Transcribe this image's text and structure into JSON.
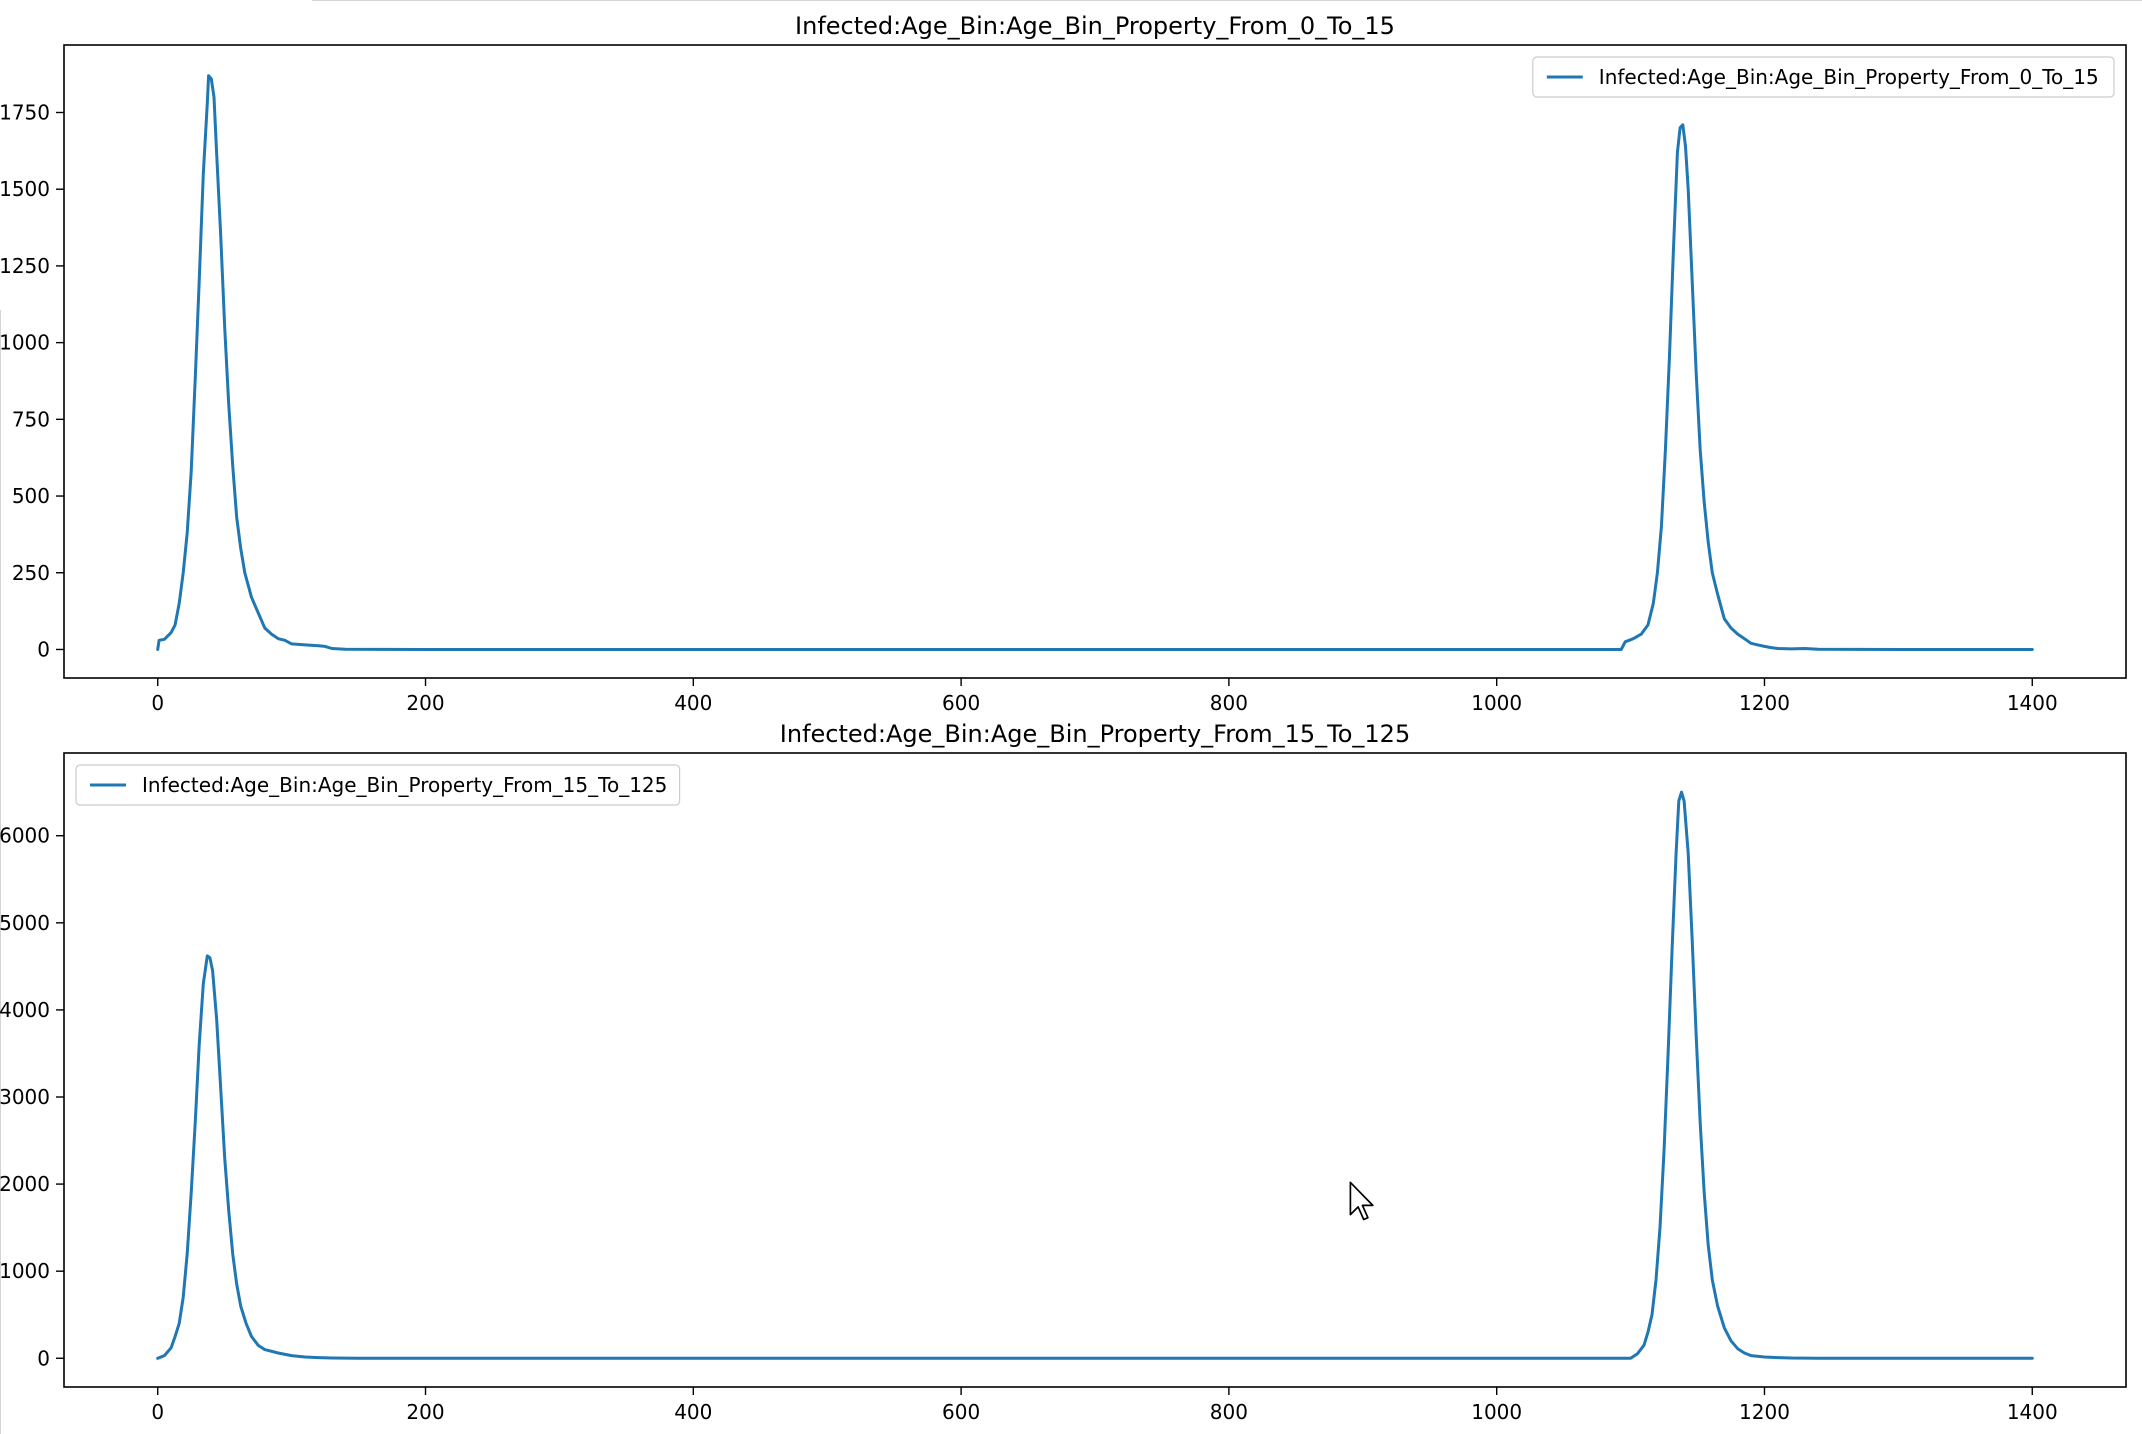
{
  "chart_data": [
    {
      "type": "line",
      "title": "Infected:Age_Bin:Age_Bin_Property_From_0_To_15",
      "xlabel": "",
      "ylabel": "",
      "xlim": [
        -70,
        1470
      ],
      "ylim": [
        -93,
        1970
      ],
      "xticks": [
        0,
        200,
        400,
        600,
        800,
        1000,
        1200,
        1400
      ],
      "xtick_labels": [
        "0",
        "200",
        "400",
        "600",
        "800",
        "1000",
        "1200",
        "1400"
      ],
      "yticks": [
        0,
        250,
        500,
        750,
        1000,
        1250,
        1500,
        1750
      ],
      "ytick_labels": [
        "0",
        "250",
        "500",
        "750",
        "1000",
        "1250",
        "1500",
        "1750"
      ],
      "grid": false,
      "legend": "upper right",
      "series": [
        {
          "name": "Infected:Age_Bin:Age_Bin_Property_From_0_To_15",
          "color": "#1f77b4",
          "points": [
            [
              0,
              0
            ],
            [
              1,
              30
            ],
            [
              5,
              33
            ],
            [
              10,
              55
            ],
            [
              13,
              80
            ],
            [
              16,
              150
            ],
            [
              19,
              250
            ],
            [
              22,
              380
            ],
            [
              25,
              580
            ],
            [
              28,
              880
            ],
            [
              31,
              1200
            ],
            [
              34,
              1550
            ],
            [
              37,
              1780
            ],
            [
              38,
              1870
            ],
            [
              40,
              1860
            ],
            [
              42,
              1800
            ],
            [
              44,
              1620
            ],
            [
              47,
              1350
            ],
            [
              50,
              1050
            ],
            [
              53,
              800
            ],
            [
              56,
              600
            ],
            [
              59,
              430
            ],
            [
              62,
              330
            ],
            [
              65,
              250
            ],
            [
              70,
              170
            ],
            [
              75,
              120
            ],
            [
              80,
              70
            ],
            [
              85,
              50
            ],
            [
              90,
              35
            ],
            [
              95,
              30
            ],
            [
              100,
              18
            ],
            [
              110,
              15
            ],
            [
              120,
              12
            ],
            [
              125,
              10
            ],
            [
              130,
              3
            ],
            [
              140,
              1
            ],
            [
              200,
              0
            ],
            [
              600,
              0
            ],
            [
              1000,
              0
            ],
            [
              1093,
              0
            ],
            [
              1096,
              25
            ],
            [
              1102,
              35
            ],
            [
              1108,
              50
            ],
            [
              1113,
              80
            ],
            [
              1117,
              150
            ],
            [
              1120,
              250
            ],
            [
              1123,
              400
            ],
            [
              1126,
              650
            ],
            [
              1129,
              950
            ],
            [
              1132,
              1300
            ],
            [
              1135,
              1620
            ],
            [
              1137,
              1700
            ],
            [
              1139,
              1710
            ],
            [
              1141,
              1640
            ],
            [
              1143,
              1500
            ],
            [
              1146,
              1200
            ],
            [
              1149,
              900
            ],
            [
              1152,
              650
            ],
            [
              1155,
              480
            ],
            [
              1158,
              350
            ],
            [
              1161,
              250
            ],
            [
              1165,
              180
            ],
            [
              1170,
              100
            ],
            [
              1175,
              70
            ],
            [
              1180,
              50
            ],
            [
              1185,
              35
            ],
            [
              1190,
              20
            ],
            [
              1195,
              15
            ],
            [
              1200,
              10
            ],
            [
              1205,
              6
            ],
            [
              1210,
              3
            ],
            [
              1220,
              2
            ],
            [
              1230,
              3
            ],
            [
              1240,
              1
            ],
            [
              1300,
              0
            ],
            [
              1400,
              0
            ]
          ]
        }
      ]
    },
    {
      "type": "line",
      "title": "Infected:Age_Bin:Age_Bin_Property_From_15_To_125",
      "xlabel": "",
      "ylabel": "",
      "xlim": [
        -70,
        1470
      ],
      "ylim": [
        -330,
        6950
      ],
      "xticks": [
        0,
        200,
        400,
        600,
        800,
        1000,
        1200,
        1400
      ],
      "xtick_labels": [
        "0",
        "200",
        "400",
        "600",
        "800",
        "1000",
        "1200",
        "1400"
      ],
      "yticks": [
        0,
        1000,
        2000,
        3000,
        4000,
        5000,
        6000
      ],
      "ytick_labels": [
        "0",
        "1000",
        "2000",
        "3000",
        "4000",
        "5000",
        "6000"
      ],
      "grid": false,
      "legend": "upper left",
      "series": [
        {
          "name": "Infected:Age_Bin:Age_Bin_Property_From_15_To_125",
          "color": "#1f77b4",
          "points": [
            [
              0,
              0
            ],
            [
              5,
              30
            ],
            [
              10,
              120
            ],
            [
              13,
              250
            ],
            [
              16,
              400
            ],
            [
              19,
              700
            ],
            [
              22,
              1200
            ],
            [
              25,
              1900
            ],
            [
              28,
              2700
            ],
            [
              31,
              3600
            ],
            [
              34,
              4300
            ],
            [
              37,
              4620
            ],
            [
              39,
              4600
            ],
            [
              41,
              4450
            ],
            [
              44,
              3900
            ],
            [
              47,
              3100
            ],
            [
              50,
              2300
            ],
            [
              53,
              1700
            ],
            [
              56,
              1200
            ],
            [
              59,
              850
            ],
            [
              62,
              600
            ],
            [
              66,
              400
            ],
            [
              70,
              250
            ],
            [
              75,
              150
            ],
            [
              80,
              100
            ],
            [
              90,
              60
            ],
            [
              100,
              30
            ],
            [
              110,
              15
            ],
            [
              120,
              8
            ],
            [
              130,
              3
            ],
            [
              150,
              0
            ],
            [
              600,
              0
            ],
            [
              1000,
              0
            ],
            [
              1100,
              0
            ],
            [
              1105,
              50
            ],
            [
              1110,
              150
            ],
            [
              1113,
              300
            ],
            [
              1116,
              500
            ],
            [
              1119,
              900
            ],
            [
              1122,
              1500
            ],
            [
              1125,
              2400
            ],
            [
              1128,
              3500
            ],
            [
              1131,
              4700
            ],
            [
              1134,
              5800
            ],
            [
              1136,
              6400
            ],
            [
              1138,
              6500
            ],
            [
              1140,
              6400
            ],
            [
              1143,
              5800
            ],
            [
              1146,
              4800
            ],
            [
              1149,
              3700
            ],
            [
              1152,
              2700
            ],
            [
              1155,
              1900
            ],
            [
              1158,
              1300
            ],
            [
              1161,
              900
            ],
            [
              1165,
              600
            ],
            [
              1170,
              350
            ],
            [
              1175,
              200
            ],
            [
              1180,
              110
            ],
            [
              1185,
              60
            ],
            [
              1190,
              30
            ],
            [
              1200,
              15
            ],
            [
              1210,
              8
            ],
            [
              1220,
              3
            ],
            [
              1240,
              1
            ],
            [
              1300,
              0
            ],
            [
              1400,
              0
            ]
          ]
        }
      ]
    }
  ]
}
